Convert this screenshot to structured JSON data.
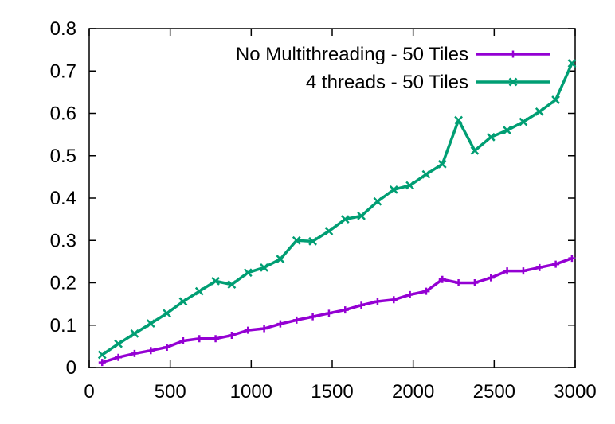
{
  "chart_data": {
    "type": "line",
    "title": "",
    "xlabel": "",
    "ylabel": "",
    "xlim": [
      0,
      3000
    ],
    "ylim": [
      0,
      0.8
    ],
    "xticks": [
      "0",
      "500",
      "1000",
      "1500",
      "2000",
      "2500",
      "3000"
    ],
    "yticks": [
      "0",
      "0.1",
      "0.2",
      "0.3",
      "0.4",
      "0.5",
      "0.6",
      "0.7",
      "0.8"
    ],
    "grid": false,
    "legend_position": "top-right",
    "x": [
      80,
      180,
      280,
      380,
      480,
      580,
      680,
      780,
      880,
      980,
      1080,
      1180,
      1280,
      1380,
      1480,
      1580,
      1680,
      1780,
      1880,
      1980,
      2080,
      2180,
      2280,
      2380,
      2480,
      2580,
      2680,
      2780,
      2880,
      2980
    ],
    "series": [
      {
        "name": "No Multithreading - 50 Tiles",
        "color": "#9400d3",
        "marker": "plus",
        "values": [
          0.012,
          0.024,
          0.033,
          0.04,
          0.048,
          0.063,
          0.068,
          0.068,
          0.076,
          0.088,
          0.092,
          0.103,
          0.112,
          0.12,
          0.128,
          0.136,
          0.147,
          0.156,
          0.16,
          0.172,
          0.18,
          0.208,
          0.2,
          0.2,
          0.212,
          0.228,
          0.228,
          0.236,
          0.244,
          0.258
        ]
      },
      {
        "name": "4 threads - 50 Tiles",
        "color": "#009e73",
        "marker": "cross",
        "values": [
          0.03,
          0.056,
          0.08,
          0.104,
          0.128,
          0.156,
          0.18,
          0.204,
          0.196,
          0.224,
          0.236,
          0.256,
          0.3,
          0.298,
          0.322,
          0.35,
          0.358,
          0.392,
          0.42,
          0.43,
          0.456,
          0.48,
          0.584,
          0.512,
          0.544,
          0.56,
          0.58,
          0.604,
          0.632,
          0.718
        ]
      }
    ]
  }
}
